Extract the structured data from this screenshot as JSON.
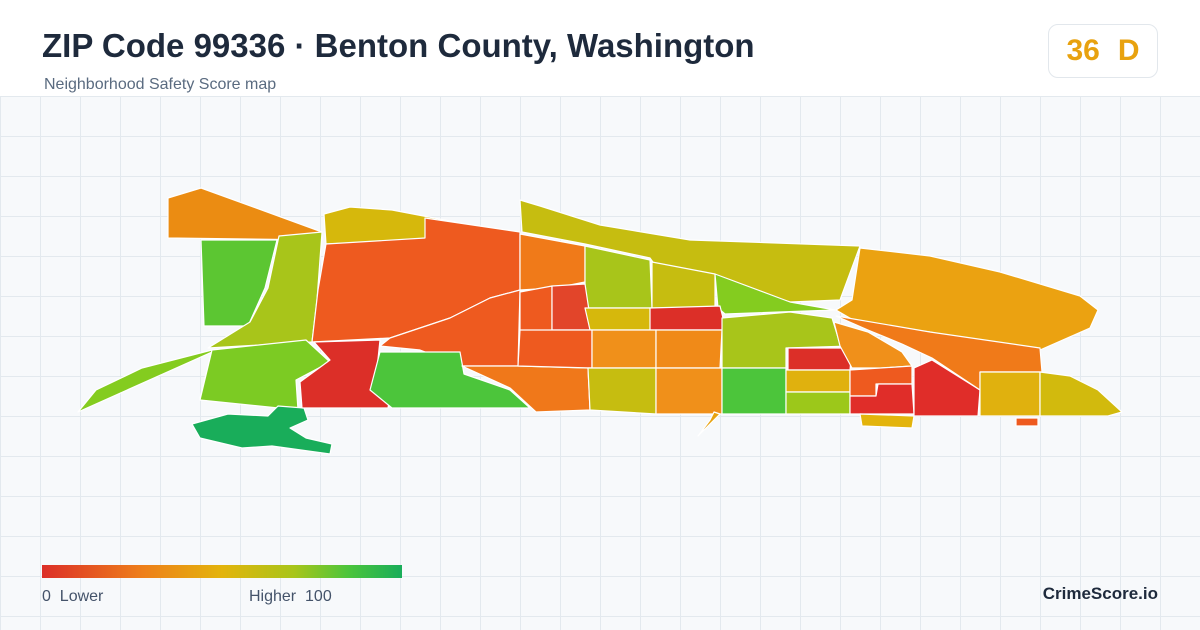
{
  "header": {
    "title": "ZIP Code 99336 · Benton County, Washington",
    "subtitle": "Neighborhood Safety Score map"
  },
  "score": {
    "value": "36",
    "grade": "D",
    "color": "#e8a20f"
  },
  "legend": {
    "low_label": "0  Lower",
    "high_label": "Higher  100",
    "low_color": "#dc2f28",
    "high_color": "#19ad5a"
  },
  "brand": "CrimeScore.io",
  "map": {
    "scale_colors": {
      "very_low": "#dc2f28",
      "low": "#ee5a1f",
      "mid_low": "#f0781a",
      "mid": "#eba211",
      "mid_high": "#d6b80c",
      "high": "#a8c51a",
      "higher": "#84cc1f",
      "very_high": "#4cc53b",
      "top": "#19ad5a"
    }
  }
}
